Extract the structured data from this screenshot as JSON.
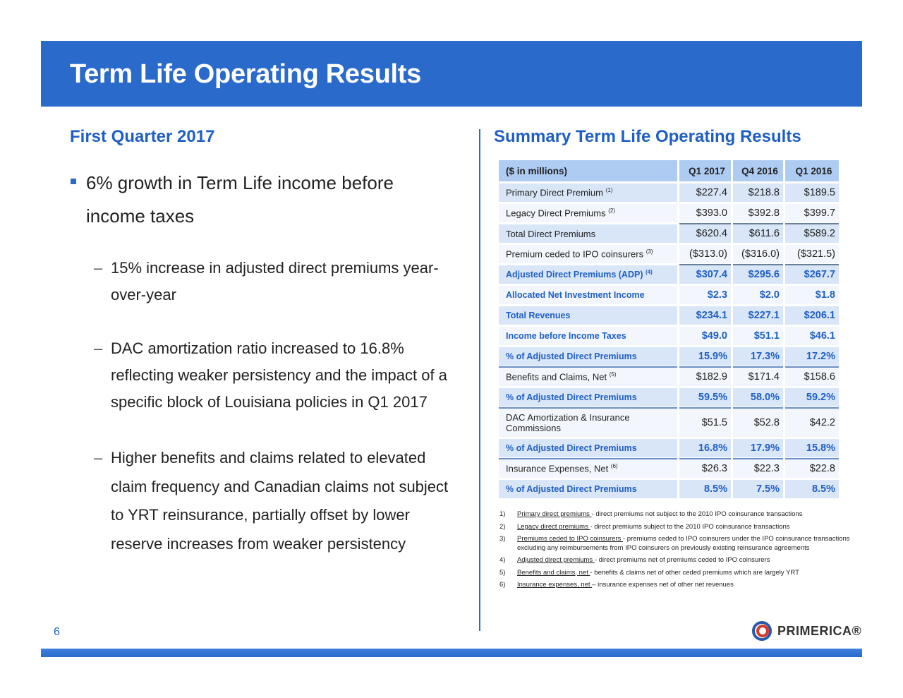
{
  "header": {
    "title": "Term Life Operating Results"
  },
  "left": {
    "section_title": "First Quarter 2017",
    "bullet": "6% growth in Term Life income before income taxes",
    "sub_bullets": [
      "15% increase in adjusted direct premiums year-over-year",
      "DAC amortization ratio increased to 16.8% reflecting weaker persistency and the impact of a specific block of Louisiana policies in Q1 2017",
      "Higher benefits and claims related to elevated claim frequency and Canadian claims not subject to YRT reinsurance, partially offset by lower reserve increases from weaker persistency"
    ]
  },
  "right": {
    "section_title": "Summary Term Life Operating Results",
    "table": {
      "headers": [
        "($ in millions)",
        "Q1 2017",
        "Q4 2016",
        "Q1 2016"
      ],
      "rows": [
        {
          "label": "Primary Direct Premium",
          "sup": "(1)",
          "values": [
            "$227.4",
            "$218.8",
            "$189.5"
          ],
          "style": "normal"
        },
        {
          "label": "Legacy Direct Premiums",
          "sup": "(2)",
          "values": [
            "$393.0",
            "$392.8",
            "$399.7"
          ],
          "style": "normal"
        },
        {
          "label": "Total Direct Premiums",
          "sup": "",
          "values": [
            "$620.4",
            "$611.6",
            "$589.2"
          ],
          "style": "normal"
        },
        {
          "label": "Premium ceded to IPO coinsurers",
          "sup": "(3)",
          "values": [
            "($313.0)",
            "($316.0)",
            "($321.5)"
          ],
          "style": "normal"
        },
        {
          "label": "Adjusted Direct Premiums (ADP)",
          "sup": "(4)",
          "values": [
            "$307.4",
            "$295.6",
            "$267.7"
          ],
          "style": "bold-blue"
        },
        {
          "label": "Allocated Net Investment Income",
          "sup": "",
          "values": [
            "$2.3",
            "$2.0",
            "$1.8"
          ],
          "style": "bold-blue"
        },
        {
          "label": "Total Revenues",
          "sup": "",
          "values": [
            "$234.1",
            "$227.1",
            "$206.1"
          ],
          "style": "bold-blue"
        },
        {
          "label": "Income before Income Taxes",
          "sup": "",
          "values": [
            "$49.0",
            "$51.1",
            "$46.1"
          ],
          "style": "bold-blue"
        },
        {
          "label": "% of Adjusted Direct Premiums",
          "sup": "",
          "values": [
            "15.9%",
            "17.3%",
            "17.2%"
          ],
          "style": "bold-blue"
        },
        {
          "label": "Benefits and Claims, Net",
          "sup": "(5)",
          "values": [
            "$182.9",
            "$171.4",
            "$158.6"
          ],
          "style": "normal"
        },
        {
          "label": "% of Adjusted Direct Premiums",
          "sup": "",
          "values": [
            "59.5%",
            "58.0%",
            "59.2%"
          ],
          "style": "bold-blue"
        },
        {
          "label": "DAC Amortization & Insurance Commissions",
          "sup": "",
          "values": [
            "$51.5",
            "$52.8",
            "$42.2"
          ],
          "style": "normal"
        },
        {
          "label": "% of Adjusted Direct Premiums",
          "sup": "",
          "values": [
            "16.8%",
            "17.9%",
            "15.8%"
          ],
          "style": "bold-blue"
        },
        {
          "label": "Insurance Expenses, Net",
          "sup": "(6)",
          "values": [
            "$26.3",
            "$22.3",
            "$22.8"
          ],
          "style": "normal"
        },
        {
          "label": "% of Adjusted Direct Premiums",
          "sup": "",
          "values": [
            "8.5%",
            "7.5%",
            "8.5%"
          ],
          "style": "bold-blue"
        }
      ]
    },
    "footnotes": [
      {
        "num": "1)",
        "term": "Primary direct premiums ",
        "text": "- direct premiums not subject to the 2010 IPO coinsurance transactions"
      },
      {
        "num": "2)",
        "term": "Legacy direct premiums ",
        "text": "- direct premiums subject to the 2010 IPO coinsurance transactions"
      },
      {
        "num": "3)",
        "term": "Premiums ceded to IPO coinsurers ",
        "text": "- premiums ceded to IPO coinsurers under the  IPO coinsurance transactions excluding any reimbursements from IPO coinsurers on previously existing reinsurance agreements"
      },
      {
        "num": "4)",
        "term": "Adjusted direct premiums ",
        "text": "- direct premiums net of premiums ceded to IPO coinsurers"
      },
      {
        "num": "5)",
        "term": "Benefits and claims, net ",
        "text": "- benefits & claims net of other ceded premiums which are largely YRT"
      },
      {
        "num": "6)",
        "term": "Insurance expenses, net ",
        "text": "– insurance expenses net of other net revenues"
      }
    ]
  },
  "footer": {
    "page_number": "6",
    "logo_text": "PRIMERICA®"
  },
  "colors": {
    "brand_blue": "#2a6acb",
    "heading_blue": "#1f5fc4",
    "table_header": "#aecbf2",
    "row_dark": "#d9e6f8",
    "row_light": "#f3f7fd"
  }
}
